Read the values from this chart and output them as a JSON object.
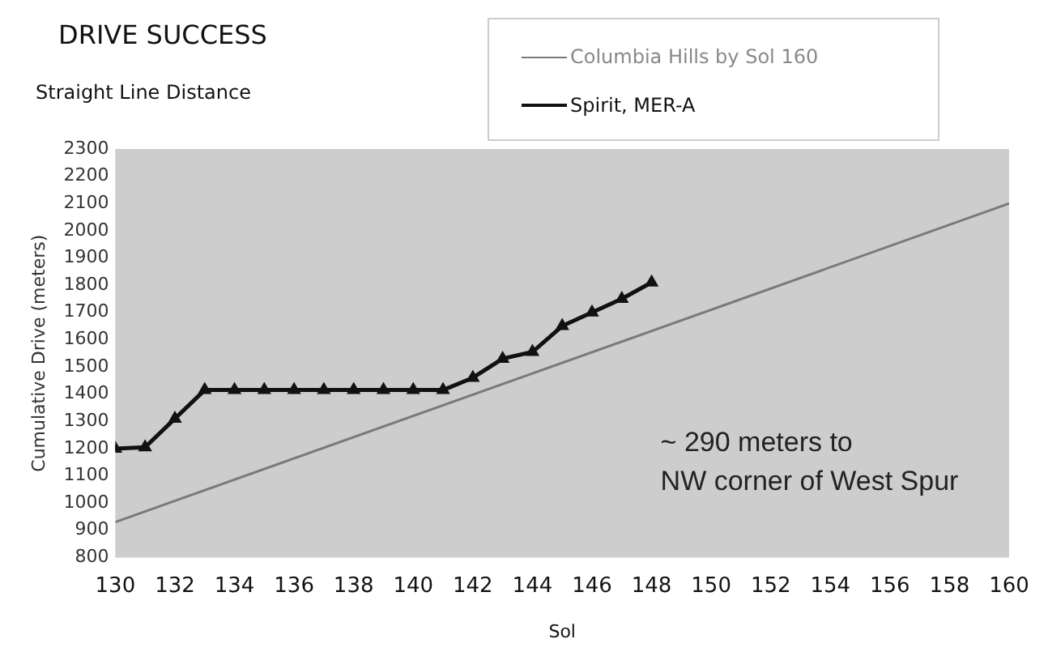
{
  "chart_data": {
    "type": "line",
    "title": "DRIVE SUCCESS",
    "subtitle": "Straight Line Distance",
    "xlabel": "Sol",
    "ylabel": "Cumulative Drive (meters)",
    "series": [
      {
        "name": "Columbia Hills by Sol 160",
        "color": "#7a7a7a",
        "x": [
          130,
          160
        ],
        "values": [
          930,
          2100
        ],
        "marker": "none"
      },
      {
        "name": "Spirit, MER-A",
        "color": "#111111",
        "x": [
          130,
          131,
          132,
          133,
          134,
          135,
          136,
          137,
          138,
          139,
          140,
          141,
          142,
          143,
          144,
          145,
          146,
          147,
          148
        ],
        "values": [
          1200,
          1205,
          1310,
          1415,
          1415,
          1415,
          1415,
          1415,
          1415,
          1415,
          1415,
          1415,
          1460,
          1530,
          1555,
          1650,
          1700,
          1750,
          1810
        ],
        "marker": "triangle"
      }
    ],
    "xlim": [
      130,
      160
    ],
    "xticks": [
      130,
      132,
      134,
      136,
      138,
      140,
      142,
      144,
      146,
      148,
      150,
      152,
      154,
      156,
      158,
      160
    ],
    "ylim": [
      800,
      2300
    ],
    "yticks": [
      800,
      900,
      1000,
      1100,
      1200,
      1300,
      1400,
      1500,
      1600,
      1700,
      1800,
      1900,
      2000,
      2100,
      2200,
      2300
    ],
    "annotations": [
      "~ 290 meters to NW corner of West Spur"
    ],
    "grid": false,
    "legend": "top right"
  }
}
